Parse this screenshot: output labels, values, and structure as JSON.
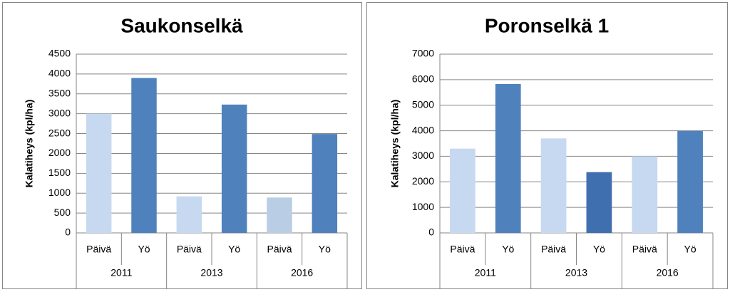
{
  "chart_data": [
    {
      "type": "bar",
      "title": "Saukonselkä",
      "y_label": "Kalatiheys (kpl/ha)",
      "categories": [
        "Päivä",
        "Yö",
        "Päivä",
        "Yö",
        "Päivä",
        "Yö"
      ],
      "groups": [
        "2011",
        "2013",
        "2016"
      ],
      "values": [
        3000,
        3900,
        920,
        3230,
        890,
        2490
      ],
      "colors": [
        "#c6d9f1",
        "#4f81bd",
        "#c6d9f1",
        "#4f81bd",
        "#b9cde5",
        "#4f81bd"
      ],
      "ylim": [
        0,
        4500
      ],
      "yticks": [
        0,
        500,
        1000,
        1500,
        2000,
        2500,
        3000,
        3500,
        4000,
        4500
      ],
      "grid": true
    },
    {
      "type": "bar",
      "title": "Poronselkä 1",
      "y_label": "Kalatiheys (kpl/ha)",
      "categories": [
        "Päivä",
        "Yö",
        "Päivä",
        "Yö",
        "Päivä",
        "Yö"
      ],
      "groups": [
        "2011",
        "2013",
        "2016"
      ],
      "values": [
        3300,
        5830,
        3700,
        2380,
        3000,
        3990
      ],
      "colors": [
        "#c6d9f1",
        "#4f81bd",
        "#c6d9f1",
        "#3f6fae",
        "#c6d9f1",
        "#4f81bd"
      ],
      "ylim": [
        0,
        7000
      ],
      "yticks": [
        0,
        1000,
        2000,
        3000,
        4000,
        5000,
        6000,
        7000
      ],
      "grid": true
    }
  ]
}
